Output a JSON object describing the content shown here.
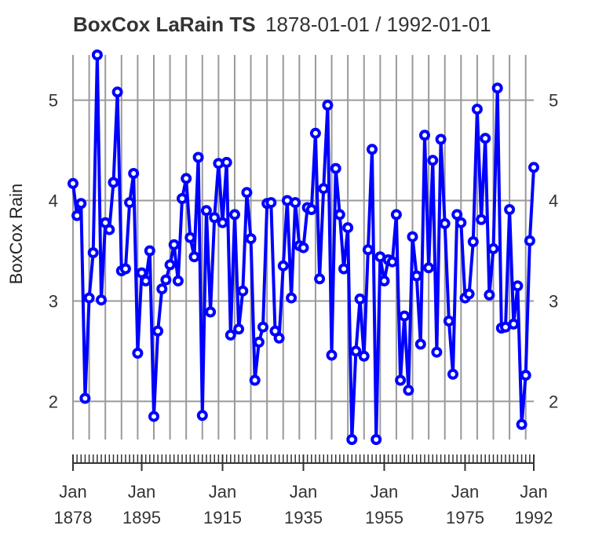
{
  "chart_data": {
    "type": "line",
    "title": "BoxCox LaRain TS",
    "subtitle": "1878-01-01 / 1992-01-01",
    "ylabel": "BoxCox Rain",
    "xlabel": "",
    "ylim": [
      1.62,
      5.45
    ],
    "yticks": [
      2,
      3,
      4,
      5
    ],
    "x_ticks": [
      {
        "year": 1878,
        "month": "Jan",
        "label": "1878"
      },
      {
        "year": 1895,
        "month": "Jan",
        "label": "1895"
      },
      {
        "year": 1915,
        "month": "Jan",
        "label": "1915"
      },
      {
        "year": 1935,
        "month": "Jan",
        "label": "1935"
      },
      {
        "year": 1955,
        "month": "Jan",
        "label": "1955"
      },
      {
        "year": 1975,
        "month": "Jan",
        "label": "1975"
      },
      {
        "year": 1992,
        "month": "Jan",
        "label": "1992"
      }
    ],
    "grid": true,
    "legend": "none",
    "line_color": "#0000ff",
    "series": [
      {
        "x_start": 1878,
        "x_step": 1,
        "values": [
          4.17,
          3.85,
          3.97,
          2.03,
          3.03,
          3.48,
          5.45,
          3.01,
          3.78,
          3.71,
          4.18,
          5.08,
          3.3,
          3.32,
          3.98,
          4.27,
          2.48,
          3.28,
          3.2,
          3.5,
          1.85,
          2.7,
          3.12,
          3.21,
          3.36,
          3.56,
          3.2,
          4.02,
          4.22,
          3.63,
          3.44,
          4.43,
          1.86,
          3.9,
          2.89,
          3.83,
          4.37,
          3.78,
          4.38,
          2.66,
          3.86,
          2.72,
          3.1,
          4.08,
          3.62,
          2.21,
          2.59,
          2.74,
          3.97,
          3.98,
          2.7,
          2.63,
          3.35,
          4.0,
          3.03,
          3.98,
          3.55,
          3.53,
          3.93,
          3.91,
          4.67,
          3.22,
          4.12,
          4.95,
          2.46,
          4.32,
          3.86,
          3.32,
          3.73,
          1.62,
          2.5,
          3.02,
          2.45,
          3.51,
          4.51,
          1.62,
          3.44,
          3.2,
          3.41,
          3.39,
          3.86,
          2.21,
          2.85,
          2.11,
          3.64,
          3.25,
          2.57,
          4.65,
          3.33,
          4.4,
          2.49,
          4.61,
          3.77,
          2.8,
          2.27,
          3.86,
          3.78,
          3.03,
          3.07,
          3.59,
          4.91,
          3.81,
          4.62,
          3.06,
          3.52,
          5.12,
          2.73,
          2.74,
          3.91,
          2.77,
          3.15,
          1.77,
          2.26,
          3.6,
          4.33
        ]
      }
    ]
  }
}
